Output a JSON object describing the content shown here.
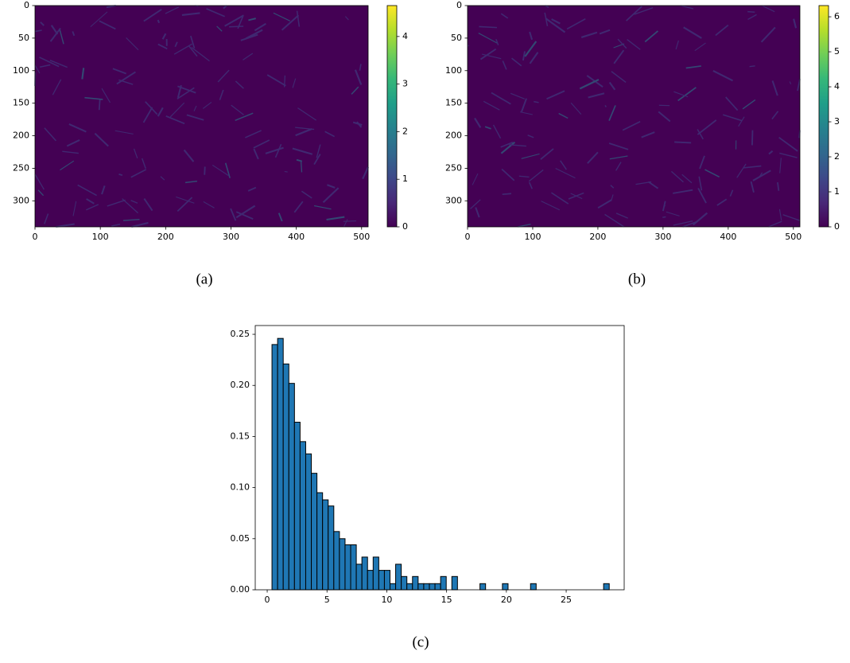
{
  "chart_data": [
    {
      "type": "heatmap",
      "caption": "(a)",
      "xlim": [
        0,
        510
      ],
      "ylim": [
        340,
        0
      ],
      "xticks": [
        0,
        100,
        200,
        300,
        400,
        500
      ],
      "yticks": [
        0,
        50,
        100,
        150,
        200,
        250,
        300
      ],
      "colormap": "viridis",
      "clim": [
        0,
        4.65
      ],
      "cticks": [
        0,
        1,
        2,
        3,
        4
      ]
    },
    {
      "type": "heatmap",
      "caption": "(b)",
      "xlim": [
        0,
        510
      ],
      "ylim": [
        340,
        0
      ],
      "xticks": [
        0,
        100,
        200,
        300,
        400,
        500
      ],
      "yticks": [
        0,
        50,
        100,
        150,
        200,
        250,
        300
      ],
      "colormap": "viridis",
      "clim": [
        0,
        6.32
      ],
      "cticks": [
        0,
        1,
        2,
        3,
        4,
        5,
        6
      ]
    },
    {
      "type": "histogram",
      "caption": "(c)",
      "color": "#1f77b4",
      "edgecolor": "#000000",
      "bins": [
        0.4,
        0.87,
        1.34,
        1.81,
        2.28,
        2.75,
        3.22,
        3.69,
        4.16,
        4.63,
        5.1,
        5.57,
        6.04,
        6.51,
        6.98,
        7.45,
        7.92,
        8.39,
        8.86,
        9.33,
        9.8,
        10.27,
        10.74,
        11.21,
        11.68,
        12.15,
        12.62,
        13.09,
        13.56,
        14.03,
        14.5,
        14.97,
        15.44,
        15.91,
        16.38,
        16.85,
        17.32,
        17.79,
        18.26,
        18.73,
        19.2,
        19.67,
        20.14,
        20.61,
        21.08,
        21.55,
        22.02,
        22.49,
        22.96,
        23.43,
        23.9,
        24.37,
        24.84,
        25.31,
        25.78,
        26.25,
        26.72,
        27.19,
        27.66,
        28.13,
        28.6
      ],
      "counts": [
        0.24,
        0.246,
        0.221,
        0.202,
        0.164,
        0.145,
        0.133,
        0.114,
        0.095,
        0.088,
        0.082,
        0.057,
        0.05,
        0.044,
        0.044,
        0.025,
        0.032,
        0.019,
        0.032,
        0.019,
        0.019,
        0.006,
        0.025,
        0.013,
        0.006,
        0.013,
        0.006,
        0.006,
        0.006,
        0.006,
        0.013,
        0,
        0.013,
        0,
        0,
        0,
        0,
        0.006,
        0,
        0,
        0,
        0.006,
        0,
        0,
        0,
        0,
        0.006,
        0,
        0,
        0,
        0,
        0,
        0,
        0,
        0,
        0,
        0,
        0,
        0,
        0.006
      ],
      "xlim": [
        -1.0,
        29.85
      ],
      "ylim": [
        0,
        0.2586
      ],
      "xticks": [
        0,
        5,
        10,
        15,
        20,
        25
      ],
      "yticks": [
        {
          "value": 0,
          "label": "0.00"
        },
        {
          "value": 0.05,
          "label": "0.05"
        },
        {
          "value": 0.1,
          "label": "0.10"
        },
        {
          "value": 0.15,
          "label": "0.15"
        },
        {
          "value": 0.2,
          "label": "0.20"
        },
        {
          "value": 0.25,
          "label": "0.25"
        }
      ]
    }
  ]
}
